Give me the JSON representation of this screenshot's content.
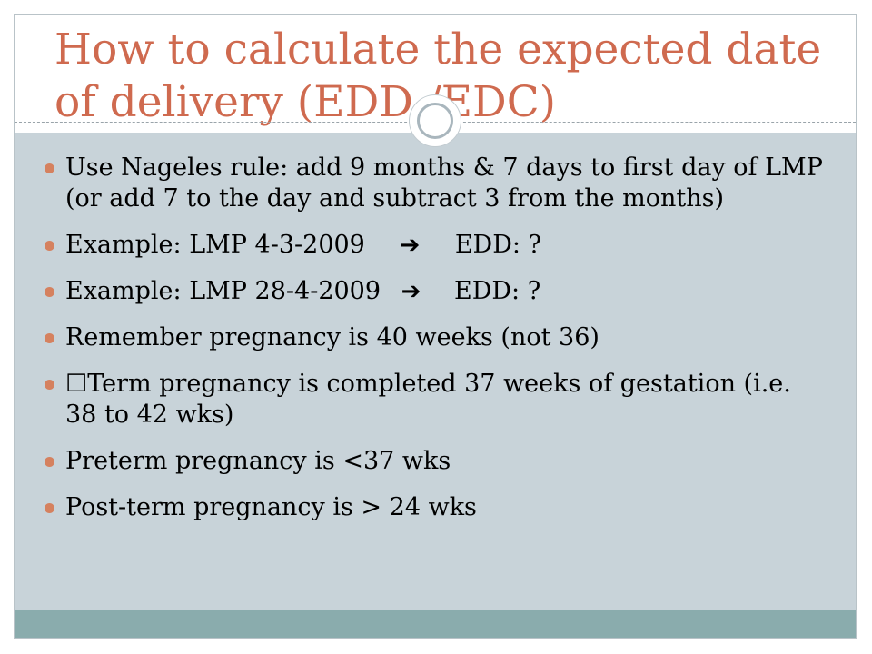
{
  "slide": {
    "title": "How to calculate the expected date of delivery (EDD /EDC)",
    "colors": {
      "title": "#cf6a4f",
      "content_bg": "#c8d3d9",
      "footer_bg": "#8aacad",
      "bullet": "#d5815f"
    },
    "bullets": [
      {
        "text": "Use Nageles rule: add 9 months & 7 days to first day of LMP (or add 7 to the day and subtract 3 from  the months)"
      },
      {
        "lead": "Example: LMP 4-3-2009",
        "arrow": "➔",
        "tail": "EDD: ?"
      },
      {
        "lead": "Example: LMP 28-4-2009",
        "arrow": "➔",
        "tail": "EDD: ?"
      },
      {
        "text": "Remember pregnancy is 40 weeks (not 36)"
      },
      {
        "box": "☐",
        "text": "Term pregnancy is completed 37 weeks of gestation (i.e. 38 to 42 wks)"
      },
      {
        "text": "Preterm pregnancy is <37 wks"
      },
      {
        "text": "Post-term pregnancy is > 24 wks"
      }
    ]
  }
}
